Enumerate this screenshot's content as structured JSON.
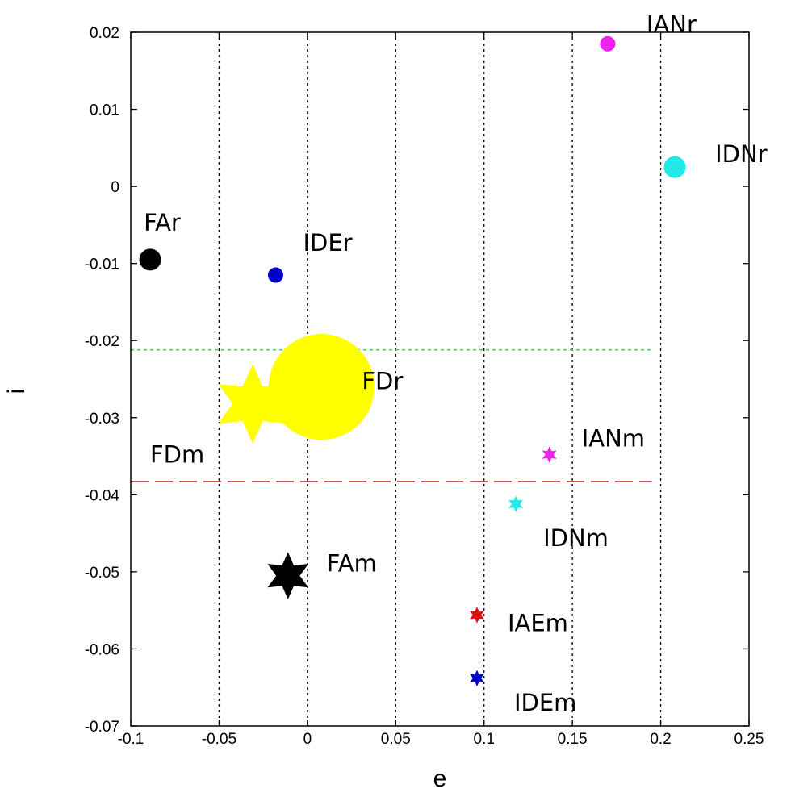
{
  "chart_data": {
    "type": "scatter",
    "title": "",
    "xlabel": "e",
    "ylabel": "i",
    "xlim": [
      -0.1,
      0.25
    ],
    "ylim": [
      -0.07,
      0.02
    ],
    "xticks": [
      -0.1,
      -0.05,
      0,
      0.05,
      0.1,
      0.15,
      0.2,
      0.25
    ],
    "xtick_labels": [
      "-0.1",
      "-0.05",
      "0",
      "0.05",
      "0.1",
      "0.15",
      "0.2",
      "0.25"
    ],
    "yticks": [
      0.02,
      0.01,
      0,
      -0.01,
      -0.02,
      -0.03,
      -0.04,
      -0.05,
      -0.06,
      -0.07
    ],
    "ytick_labels": [
      "0.02",
      "0.01",
      "0",
      "-0.01",
      "-0.02",
      "-0.03",
      "-0.04",
      "-0.05",
      "-0.06",
      "-0.07"
    ],
    "grid": "vertical dotted",
    "reference_lines": [
      {
        "y": -0.0212,
        "x_range": [
          -0.1,
          0.195
        ],
        "color": "#3ddc3d",
        "style": "dotted"
      },
      {
        "y": -0.0383,
        "x_range": [
          -0.1,
          0.195
        ],
        "color": "#b22222",
        "style": "dashed"
      }
    ],
    "points": [
      {
        "label": "IANr",
        "x": 0.17,
        "y": 0.0185,
        "color": "#ee22ee",
        "marker": "circle",
        "size": "small"
      },
      {
        "label": "IDNr",
        "x": 0.208,
        "y": 0.0025,
        "color": "#22e8e8",
        "marker": "circle",
        "size": "small"
      },
      {
        "label": "FAr",
        "x": -0.089,
        "y": -0.0095,
        "color": "#000000",
        "marker": "circle",
        "size": "small"
      },
      {
        "label": "IDEr",
        "x": -0.018,
        "y": -0.0115,
        "color": "#0000c8",
        "marker": "circle",
        "size": "small"
      },
      {
        "label": "FDr",
        "x": 0.008,
        "y": -0.026,
        "color": "#ffff00",
        "marker": "circle",
        "size": "large"
      },
      {
        "label": "FDm",
        "x": -0.031,
        "y": -0.0282,
        "color": "#ffff00",
        "marker": "star",
        "size": "large"
      },
      {
        "label": "IANm",
        "x": 0.137,
        "y": -0.0348,
        "color": "#ee22ee",
        "marker": "star",
        "size": "small"
      },
      {
        "label": "IDNm",
        "x": 0.118,
        "y": -0.0412,
        "color": "#22e8e8",
        "marker": "star",
        "size": "small"
      },
      {
        "label": "FAm",
        "x": -0.011,
        "y": -0.0505,
        "color": "#000000",
        "marker": "star",
        "size": "medium"
      },
      {
        "label": "IAEm",
        "x": 0.096,
        "y": -0.0556,
        "color": "#dd1111",
        "marker": "star",
        "size": "small"
      },
      {
        "label": "IDEm",
        "x": 0.096,
        "y": -0.0638,
        "color": "#0000c8",
        "marker": "star",
        "size": "small"
      }
    ]
  }
}
